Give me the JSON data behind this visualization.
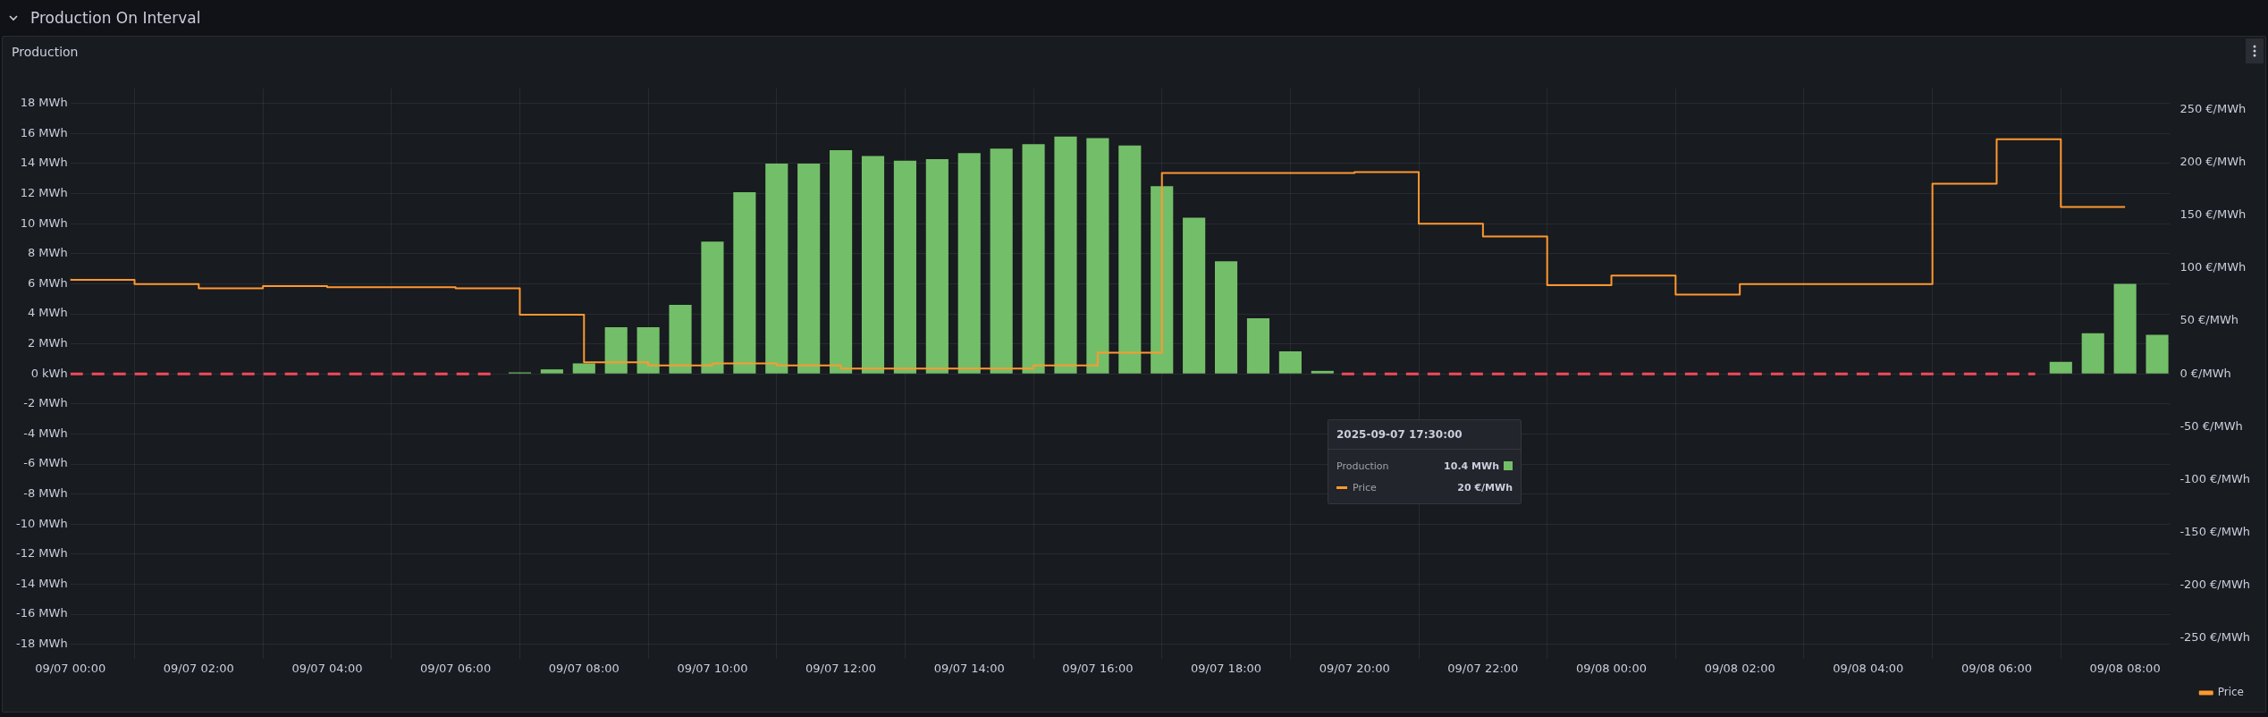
{
  "chart_data": {
    "type": "bar",
    "title": "Production On Interval",
    "subtitle": "Production",
    "xlim": [
      "2025-09-07T00:00",
      "2025-09-08T08:42"
    ],
    "xticks": [
      {
        "value": "2025-09-07T00:00",
        "label": "09/07 00:00"
      },
      {
        "value": "2025-09-07T02:00",
        "label": "09/07 02:00"
      },
      {
        "value": "2025-09-07T04:00",
        "label": "09/07 04:00"
      },
      {
        "value": "2025-09-07T06:00",
        "label": "09/07 06:00"
      },
      {
        "value": "2025-09-07T08:00",
        "label": "09/07 08:00"
      },
      {
        "value": "2025-09-07T10:00",
        "label": "09/07 10:00"
      },
      {
        "value": "2025-09-07T12:00",
        "label": "09/07 12:00"
      },
      {
        "value": "2025-09-07T14:00",
        "label": "09/07 14:00"
      },
      {
        "value": "2025-09-07T16:00",
        "label": "09/07 16:00"
      },
      {
        "value": "2025-09-07T18:00",
        "label": "09/07 18:00"
      },
      {
        "value": "2025-09-07T20:00",
        "label": "09/07 20:00"
      },
      {
        "value": "2025-09-07T22:00",
        "label": "09/07 22:00"
      },
      {
        "value": "2025-09-08T00:00",
        "label": "09/08 00:00"
      },
      {
        "value": "2025-09-08T02:00",
        "label": "09/08 02:00"
      },
      {
        "value": "2025-09-08T04:00",
        "label": "09/08 04:00"
      },
      {
        "value": "2025-09-08T06:00",
        "label": "09/08 06:00"
      },
      {
        "value": "2025-09-08T08:00",
        "label": "09/08 08:00"
      }
    ],
    "ylim": [
      -19,
      19
    ],
    "yticks": [
      {
        "value": -18,
        "label": "-18 MWh"
      },
      {
        "value": -16,
        "label": "-16 MWh"
      },
      {
        "value": -14,
        "label": "-14 MWh"
      },
      {
        "value": -12,
        "label": "-12 MWh"
      },
      {
        "value": -10,
        "label": "-10 MWh"
      },
      {
        "value": -8,
        "label": "-8 MWh"
      },
      {
        "value": -6,
        "label": "-6 MWh"
      },
      {
        "value": -4,
        "label": "-4 MWh"
      },
      {
        "value": -2,
        "label": "-2 MWh"
      },
      {
        "value": 0,
        "label": "0 kWh"
      },
      {
        "value": 2,
        "label": "2 MWh"
      },
      {
        "value": 4,
        "label": "4 MWh"
      },
      {
        "value": 6,
        "label": "6 MWh"
      },
      {
        "value": 8,
        "label": "8 MWh"
      },
      {
        "value": 10,
        "label": "10 MWh"
      },
      {
        "value": 12,
        "label": "12 MWh"
      },
      {
        "value": 14,
        "label": "14 MWh"
      },
      {
        "value": 16,
        "label": "16 MWh"
      },
      {
        "value": 18,
        "label": "18 MWh"
      }
    ],
    "y2lim": [
      -270,
      270
    ],
    "y2ticks": [
      {
        "value": -250,
        "label": "-250 €/MWh"
      },
      {
        "value": -200,
        "label": "-200 €/MWh"
      },
      {
        "value": -150,
        "label": "-150 €/MWh"
      },
      {
        "value": -100,
        "label": "-100 €/MWh"
      },
      {
        "value": -50,
        "label": "-50 €/MWh"
      },
      {
        "value": 0,
        "label": "0 €/MWh"
      },
      {
        "value": 50,
        "label": "50 €/MWh"
      },
      {
        "value": 100,
        "label": "100 €/MWh"
      },
      {
        "value": 150,
        "label": "150 €/MWh"
      },
      {
        "value": 200,
        "label": "200 €/MWh"
      },
      {
        "value": 250,
        "label": "250 €/MWh"
      }
    ],
    "grid": true,
    "legend": "bottom right",
    "marker": "none",
    "series": [
      {
        "color": "#73bf69",
        "x": [
          "2025-09-07T07:00",
          "2025-09-07T07:30",
          "2025-09-07T08:00",
          "2025-09-07T08:30",
          "2025-09-07T09:00",
          "2025-09-07T09:30",
          "2025-09-07T10:00",
          "2025-09-07T10:30",
          "2025-09-07T11:00",
          "2025-09-07T11:30",
          "2025-09-07T12:00",
          "2025-09-07T12:30",
          "2025-09-07T13:00",
          "2025-09-07T13:30",
          "2025-09-07T14:00",
          "2025-09-07T14:30",
          "2025-09-07T15:00",
          "2025-09-07T15:30",
          "2025-09-07T16:00",
          "2025-09-07T16:30",
          "2025-09-07T17:00",
          "2025-09-07T17:30",
          "2025-09-07T18:00",
          "2025-09-07T18:30",
          "2025-09-07T19:00",
          "2025-09-07T19:30",
          "2025-09-08T07:00",
          "2025-09-08T07:30",
          "2025-09-08T08:00",
          "2025-09-08T08:30"
        ],
        "values": [
          0.1,
          0.3,
          0.7,
          3.1,
          3.1,
          4.6,
          8.8,
          12.1,
          14,
          14,
          14.9,
          14.5,
          14.2,
          14.3,
          14.7,
          15,
          15.3,
          15.8,
          15.7,
          15.2,
          12.5,
          10.4,
          7.5,
          3.7,
          1.5,
          0.2,
          0.8,
          2.7,
          6,
          2.6
        ]
      },
      {
        "type": "line",
        "color": "#f2495c",
        "line_style": "dashed",
        "x": [
          "2025-09-07T00:00",
          "2025-09-07T06:36",
          "2025-09-07T07:00",
          "2025-09-07T19:48",
          "2025-09-08T06:36"
        ],
        "values": [
          0,
          0,
          null,
          0,
          0
        ]
      },
      {
        "type": "step",
        "name": "Price",
        "axis": "y2",
        "color": "#ff9830",
        "x": [
          "2025-09-07T00:00",
          "2025-09-07T01:00",
          "2025-09-07T02:00",
          "2025-09-07T03:00",
          "2025-09-07T04:00",
          "2025-09-07T05:00",
          "2025-09-07T06:00",
          "2025-09-07T07:00",
          "2025-09-07T08:00",
          "2025-09-07T09:00",
          "2025-09-07T10:00",
          "2025-09-07T11:00",
          "2025-09-07T12:00",
          "2025-09-07T13:00",
          "2025-09-07T14:00",
          "2025-09-07T15:00",
          "2025-09-07T16:00",
          "2025-09-07T17:00",
          "2025-09-07T18:00",
          "2025-09-07T19:00",
          "2025-09-07T20:00",
          "2025-09-07T21:00",
          "2025-09-07T22:00",
          "2025-09-07T23:00",
          "2025-09-08T00:00",
          "2025-09-08T01:00",
          "2025-09-08T02:00",
          "2025-09-08T03:00",
          "2025-09-08T04:00",
          "2025-09-08T05:00",
          "2025-09-08T06:00",
          "2025-09-08T07:00",
          "2025-09-08T08:00"
        ],
        "values": [
          90,
          89,
          85,
          81,
          83,
          82,
          82,
          81,
          56,
          11,
          8,
          10,
          8,
          5,
          5,
          5,
          8,
          20,
          190,
          190,
          190,
          191,
          142,
          130,
          84,
          93,
          75,
          85,
          85,
          85,
          180,
          222,
          158
        ]
      }
    ],
    "annotations": [
      "2025-09-07 17:30:00",
      "Production",
      "10.4 MWh",
      "Price",
      "20 €/MWh"
    ]
  }
}
